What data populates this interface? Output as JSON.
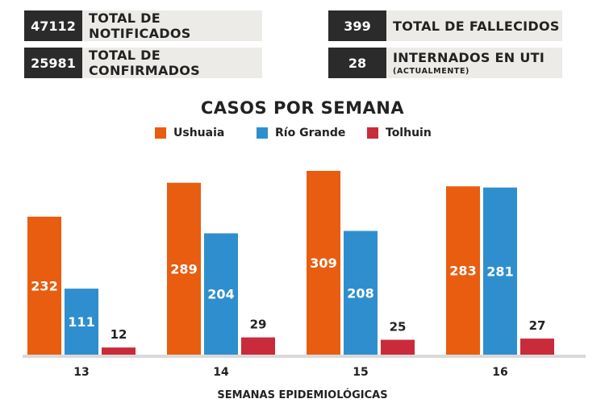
{
  "stats": {
    "notificados": {
      "value": "47112",
      "label": "TOTAL DE NOTIFICADOS"
    },
    "confirmados": {
      "value": "25981",
      "label": "TOTAL DE CONFIRMADOS"
    },
    "fallecidos": {
      "value": "399",
      "label": "TOTAL DE FALLECIDOS"
    },
    "internados": {
      "value": "28",
      "label": "INTERNADOS EN UTI",
      "sublabel": "(ACTUALMENTE)"
    }
  },
  "colors": {
    "Ushuaia": "#e85d10",
    "Río Grande": "#2f8fce",
    "Tolhuin": "#c92b3b",
    "baseline": "#d9d9d9"
  },
  "chart_data": {
    "type": "bar",
    "title": "CASOS POR SEMANA",
    "xlabel": "SEMANAS EPIDEMIOLÓGICAS",
    "ylabel": "",
    "categories": [
      "13",
      "14",
      "15",
      "16"
    ],
    "series": [
      {
        "name": "Ushuaia",
        "values": [
          232,
          289,
          309,
          283
        ]
      },
      {
        "name": "Río Grande",
        "values": [
          111,
          204,
          208,
          281
        ]
      },
      {
        "name": "Tolhuin",
        "values": [
          12,
          29,
          25,
          27
        ]
      }
    ],
    "ylim": [
      0,
      309
    ],
    "legend": "top-center",
    "grid": false
  }
}
